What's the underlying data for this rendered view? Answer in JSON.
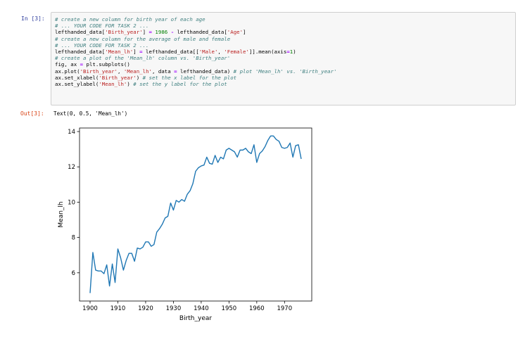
{
  "notebook": {
    "in_prompt": "In [3]:",
    "out_prompt": "Out[3]:",
    "code_lines": [
      [
        {
          "t": "c",
          "v": "# create a new column for birth year of each age"
        }
      ],
      [
        {
          "t": "c",
          "v": "# ... YOUR CODE FOR TASK 2 ..."
        }
      ],
      [
        {
          "t": "p",
          "v": "lefthanded_data["
        },
        {
          "t": "s",
          "v": "'Birth_year'"
        },
        {
          "t": "p",
          "v": "] "
        },
        {
          "t": "o",
          "v": "="
        },
        {
          "t": "p",
          "v": " "
        },
        {
          "t": "n",
          "v": "1986"
        },
        {
          "t": "p",
          "v": " "
        },
        {
          "t": "o",
          "v": "-"
        },
        {
          "t": "p",
          "v": " lefthanded_data["
        },
        {
          "t": "s",
          "v": "'Age'"
        },
        {
          "t": "p",
          "v": "]"
        }
      ],
      [
        {
          "t": "c",
          "v": "# create a new column for the average of male and female"
        }
      ],
      [
        {
          "t": "c",
          "v": "# ... YOUR CODE FOR TASK 2 ..."
        }
      ],
      [
        {
          "t": "p",
          "v": "lefthanded_data["
        },
        {
          "t": "s",
          "v": "'Mean_lh'"
        },
        {
          "t": "p",
          "v": "] "
        },
        {
          "t": "o",
          "v": "="
        },
        {
          "t": "p",
          "v": " lefthanded_data[["
        },
        {
          "t": "s",
          "v": "'Male'"
        },
        {
          "t": "p",
          "v": ", "
        },
        {
          "t": "s",
          "v": "'Female'"
        },
        {
          "t": "p",
          "v": "]].mean(axis"
        },
        {
          "t": "o",
          "v": "="
        },
        {
          "t": "n",
          "v": "1"
        },
        {
          "t": "p",
          "v": ")"
        }
      ],
      [
        {
          "t": "c",
          "v": "# create a plot of the 'Mean_lh' column vs. 'Birth_year'"
        }
      ],
      [
        {
          "t": "p",
          "v": "fig, ax "
        },
        {
          "t": "o",
          "v": "="
        },
        {
          "t": "p",
          "v": " plt.subplots()"
        }
      ],
      [
        {
          "t": "p",
          "v": "ax.plot("
        },
        {
          "t": "s",
          "v": "'Birth_year'"
        },
        {
          "t": "p",
          "v": ", "
        },
        {
          "t": "s",
          "v": "'Mean_lh'"
        },
        {
          "t": "p",
          "v": ", data "
        },
        {
          "t": "o",
          "v": "="
        },
        {
          "t": "p",
          "v": " lefthanded_data) "
        },
        {
          "t": "c",
          "v": "# plot 'Mean_lh' vs. 'Birth_year'"
        }
      ],
      [
        {
          "t": "p",
          "v": "ax.set_xlabel("
        },
        {
          "t": "s",
          "v": "'Birth_year'"
        },
        {
          "t": "p",
          "v": ") "
        },
        {
          "t": "c",
          "v": "# set the x label for the plot"
        }
      ],
      [
        {
          "t": "p",
          "v": "ax.set_ylabel("
        },
        {
          "t": "s",
          "v": "'Mean_lh'"
        },
        {
          "t": "p",
          "v": ") "
        },
        {
          "t": "c",
          "v": "# set the y label for the plot"
        }
      ]
    ],
    "output_text": "Text(0, 0.5, 'Mean_lh')"
  },
  "colors": {
    "line": "#1f77b4",
    "comment": "#408080",
    "string": "#ba2121",
    "number": "#008000",
    "operator": "#aa22ff",
    "in_prompt": "#303f9f",
    "out_prompt": "#d84315"
  },
  "chart_data": {
    "type": "line",
    "xlabel": "Birth_year",
    "ylabel": "Mean_lh",
    "xlim": [
      1896.2,
      1979.8
    ],
    "ylim": [
      4.4,
      14.2
    ],
    "xticks": [
      1900,
      1910,
      1920,
      1930,
      1940,
      1950,
      1960,
      1970
    ],
    "yticks": [
      6,
      8,
      10,
      12,
      14
    ],
    "grid": false,
    "series": [
      {
        "x": [
          1900,
          1901,
          1902,
          1903,
          1904,
          1905,
          1906,
          1907,
          1908,
          1909,
          1910,
          1911,
          1912,
          1913,
          1914,
          1915,
          1916,
          1917,
          1918,
          1919,
          1920,
          1921,
          1922,
          1923,
          1924,
          1925,
          1926,
          1927,
          1928,
          1929,
          1930,
          1931,
          1932,
          1933,
          1934,
          1935,
          1936,
          1937,
          1938,
          1939,
          1940,
          1941,
          1942,
          1943,
          1944,
          1945,
          1946,
          1947,
          1948,
          1949,
          1950,
          1951,
          1952,
          1953,
          1954,
          1955,
          1956,
          1957,
          1958,
          1959,
          1960,
          1961,
          1962,
          1963,
          1964,
          1965,
          1966,
          1967,
          1968,
          1969,
          1970,
          1971,
          1972,
          1973,
          1974,
          1975,
          1976
        ],
        "y": [
          4.85,
          7.15,
          6.15,
          6.1,
          6.1,
          5.95,
          6.45,
          5.25,
          6.5,
          5.45,
          7.35,
          6.85,
          6.15,
          6.7,
          7.1,
          7.1,
          6.65,
          7.4,
          7.35,
          7.45,
          7.75,
          7.75,
          7.5,
          7.6,
          8.3,
          8.5,
          8.75,
          9.1,
          9.2,
          9.95,
          9.55,
          10.1,
          10.0,
          10.15,
          10.05,
          10.45,
          10.65,
          11.05,
          11.75,
          11.95,
          12.05,
          12.1,
          12.55,
          12.2,
          12.15,
          12.65,
          12.25,
          12.55,
          12.45,
          12.95,
          13.05,
          12.95,
          12.85,
          12.55,
          12.95,
          12.95,
          13.05,
          12.85,
          12.75,
          13.25,
          12.25,
          12.75,
          12.9,
          13.15,
          13.5,
          13.75,
          13.75,
          13.55,
          13.45,
          13.1,
          13.05,
          13.1,
          13.35,
          12.55,
          13.2,
          13.25,
          12.45
        ]
      }
    ]
  }
}
